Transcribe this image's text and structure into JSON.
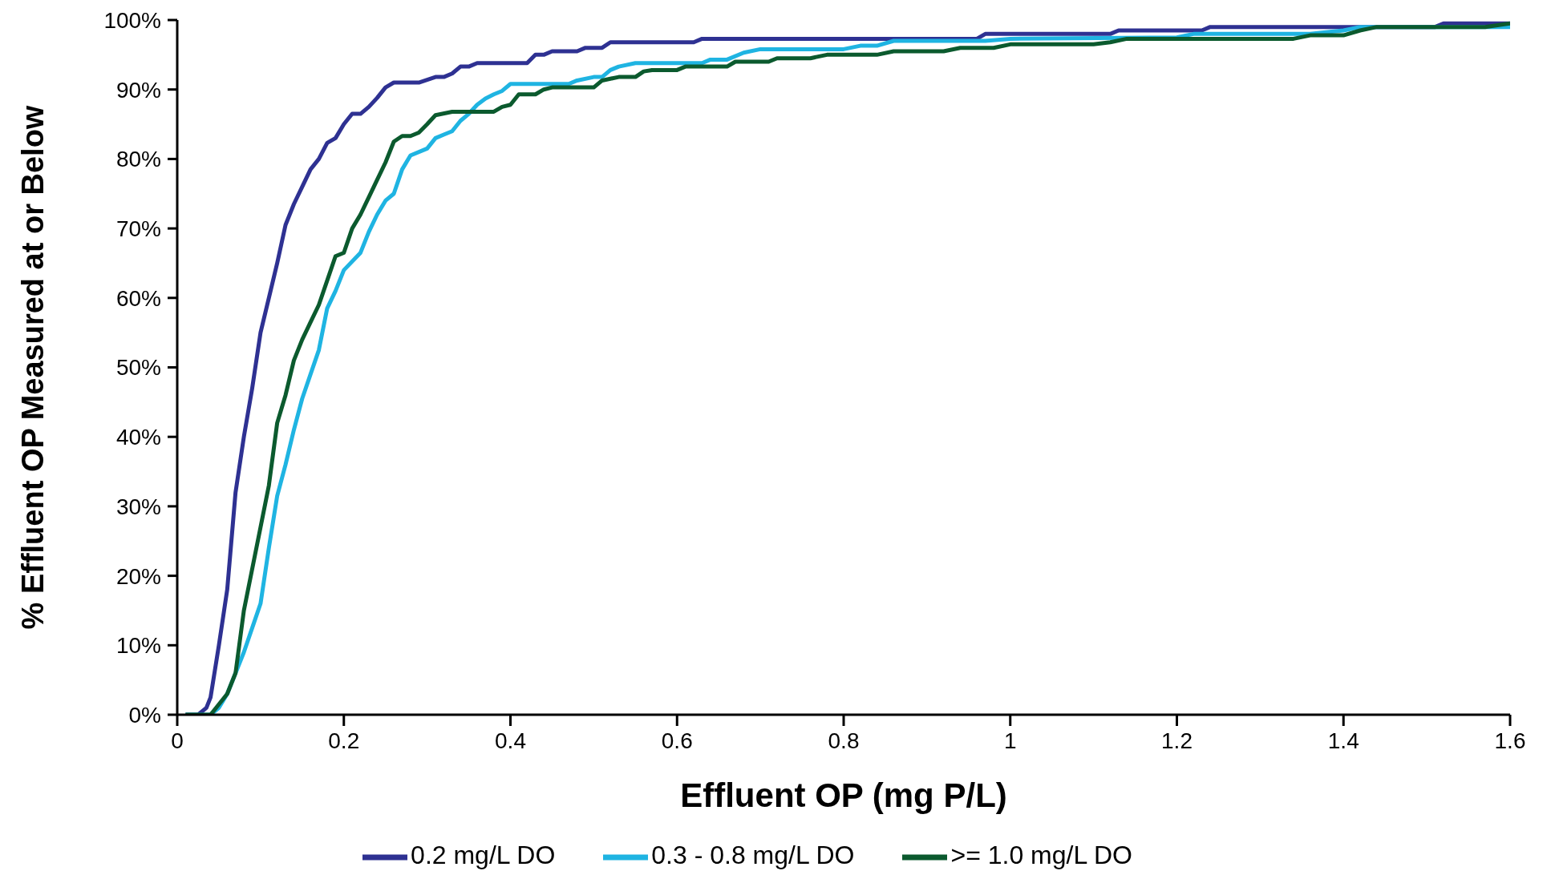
{
  "chart_data": {
    "type": "line",
    "xlabel": "Effluent OP (mg P/L)",
    "ylabel": "% Effluent OP Measured at or Below",
    "xlim": [
      0,
      1.6
    ],
    "xticks": [
      0,
      0.2,
      0.4,
      0.6,
      0.8,
      1,
      1.2,
      1.4,
      1.6
    ],
    "ylim": [
      0,
      100
    ],
    "yticks": [
      {
        "value": 0,
        "label": "0%"
      },
      {
        "value": 10,
        "label": "10%"
      },
      {
        "value": 20,
        "label": "20%"
      },
      {
        "value": 30,
        "label": "30%"
      },
      {
        "value": 40,
        "label": "40%"
      },
      {
        "value": 50,
        "label": "50%"
      },
      {
        "value": 60,
        "label": "60%"
      },
      {
        "value": 70,
        "label": "70%"
      },
      {
        "value": 80,
        "label": "80%"
      },
      {
        "value": 90,
        "label": "90%"
      },
      {
        "value": 100,
        "label": "100%"
      }
    ],
    "grid": false,
    "legend": "bottom",
    "marker": "none",
    "line_style": "solid",
    "series": [
      {
        "name": "0.2 mg/L DO",
        "color": "#2e3192",
        "x": [
          0.01,
          0.025,
          0.035,
          0.04,
          0.05,
          0.06,
          0.07,
          0.08,
          0.09,
          0.1,
          0.11,
          0.12,
          0.13,
          0.14,
          0.15,
          0.16,
          0.17,
          0.18,
          0.19,
          0.2,
          0.21,
          0.22,
          0.23,
          0.24,
          0.25,
          0.26,
          0.29,
          0.31,
          0.32,
          0.33,
          0.34,
          0.35,
          0.36,
          0.42,
          0.43,
          0.44,
          0.45,
          0.48,
          0.49,
          0.51,
          0.52,
          0.62,
          0.63,
          0.96,
          0.97,
          1.12,
          1.13,
          1.23,
          1.24,
          1.51,
          1.52,
          1.6
        ],
        "values": [
          0,
          0,
          1,
          2.5,
          10,
          18,
          32,
          40,
          47,
          55,
          60,
          65,
          70.5,
          73.5,
          76,
          78.5,
          80,
          82.3,
          83,
          85,
          86.5,
          86.5,
          87.5,
          88.8,
          90.3,
          91,
          91,
          91.8,
          91.8,
          92.3,
          93.3,
          93.3,
          93.8,
          93.8,
          95,
          95,
          95.5,
          95.5,
          96,
          96,
          96.8,
          96.8,
          97.3,
          97.3,
          98,
          98,
          98.5,
          98.5,
          99,
          99,
          99.5,
          99.5
        ]
      },
      {
        "name": "0.3 - 0.8 mg/L DO",
        "color": "#1fb4e2",
        "x": [
          0.01,
          0.04,
          0.05,
          0.06,
          0.07,
          0.08,
          0.09,
          0.1,
          0.11,
          0.12,
          0.13,
          0.14,
          0.15,
          0.16,
          0.17,
          0.18,
          0.19,
          0.2,
          0.22,
          0.23,
          0.24,
          0.25,
          0.26,
          0.27,
          0.28,
          0.3,
          0.31,
          0.32,
          0.33,
          0.34,
          0.35,
          0.36,
          0.37,
          0.38,
          0.39,
          0.4,
          0.47,
          0.48,
          0.5,
          0.51,
          0.52,
          0.53,
          0.55,
          0.63,
          0.64,
          0.66,
          0.68,
          0.7,
          0.8,
          0.82,
          0.84,
          0.86,
          0.97,
          1.0,
          1.2,
          1.22,
          1.36,
          1.4,
          1.42,
          1.6
        ],
        "values": [
          0,
          0,
          1,
          3,
          6,
          9,
          12.5,
          16,
          24,
          31.5,
          36,
          41,
          45.5,
          49,
          52.5,
          58.5,
          61,
          64,
          66.5,
          69.5,
          72,
          74,
          75,
          78.5,
          80.5,
          81.5,
          83,
          83.5,
          84,
          85.5,
          86.5,
          87.8,
          88.7,
          89.3,
          89.8,
          90.8,
          90.8,
          91.3,
          91.8,
          91.8,
          92.8,
          93.3,
          93.8,
          93.8,
          94.3,
          94.3,
          95.3,
          95.8,
          95.8,
          96.3,
          96.3,
          97,
          97,
          97.3,
          97.5,
          98,
          98,
          98.5,
          99,
          99
        ]
      },
      {
        "name": ">= 1.0 mg/L DO",
        "color": "#0b5a2e",
        "x": [
          0.01,
          0.04,
          0.05,
          0.06,
          0.07,
          0.08,
          0.09,
          0.1,
          0.11,
          0.12,
          0.13,
          0.14,
          0.15,
          0.16,
          0.17,
          0.18,
          0.19,
          0.2,
          0.21,
          0.22,
          0.23,
          0.24,
          0.25,
          0.26,
          0.27,
          0.28,
          0.29,
          0.3,
          0.31,
          0.33,
          0.38,
          0.39,
          0.4,
          0.41,
          0.43,
          0.44,
          0.45,
          0.5,
          0.51,
          0.53,
          0.55,
          0.56,
          0.57,
          0.6,
          0.61,
          0.66,
          0.67,
          0.71,
          0.72,
          0.76,
          0.78,
          0.84,
          0.86,
          0.92,
          0.94,
          0.98,
          1.0,
          1.1,
          1.12,
          1.14,
          1.34,
          1.36,
          1.4,
          1.42,
          1.44,
          1.57,
          1.6
        ],
        "values": [
          0,
          0,
          1.5,
          3,
          6,
          15,
          21,
          27,
          33,
          42,
          46,
          51,
          54,
          56.5,
          59,
          62.5,
          66,
          66.5,
          70,
          72,
          74.5,
          77,
          79.5,
          82.5,
          83.3,
          83.3,
          83.8,
          85,
          86.3,
          86.8,
          86.8,
          87.5,
          87.8,
          89.3,
          89.3,
          90,
          90.3,
          90.3,
          91.3,
          91.8,
          91.8,
          92.6,
          92.8,
          92.8,
          93.3,
          93.3,
          94,
          94,
          94.5,
          94.5,
          95,
          95,
          95.5,
          95.5,
          96,
          96,
          96.5,
          96.5,
          96.8,
          97.3,
          97.3,
          97.8,
          97.8,
          98.5,
          99,
          99,
          99.5
        ]
      }
    ]
  }
}
